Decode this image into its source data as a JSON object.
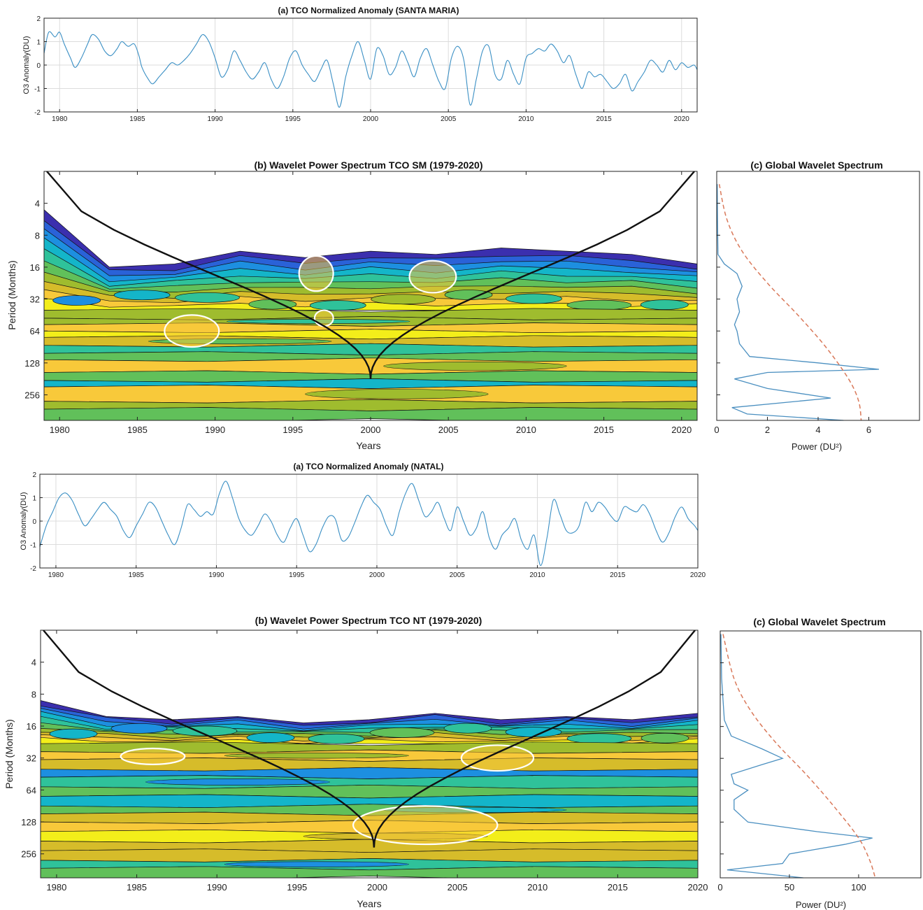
{
  "colors": {
    "anomaly_line": "#3a8fc4",
    "gws_line": "#4a8fc0",
    "significance_dashed": "#d9795a",
    "cone": "#111111",
    "significance_contour": "#ffffff",
    "wavelet_levels": [
      "#ffffff",
      "#3b2fae",
      "#2a62d8",
      "#1d8fe0",
      "#14b5c9",
      "#2fc29a",
      "#61c05a",
      "#9fbc2e",
      "#d6bc2a",
      "#f8c93a",
      "#f3ee1a"
    ]
  },
  "panels": {
    "sm_anomaly": {
      "title": "(a) TCO Normalized Anomaly (SANTA MARIA)",
      "ylabel": "O3 Anomaly(DU)"
    },
    "sm_wavelet": {
      "title": "(b) Wavelet Power Spectrum TCO SM  (1979-2020)",
      "xlabel": "Years",
      "ylabel": "Period (Months)"
    },
    "sm_gws": {
      "title": "(c) Global Wavelet Spectrum",
      "xlabel": "Power (DU²)"
    },
    "nt_anomaly": {
      "title": "(a) TCO Normalized Anomaly (NATAL)",
      "ylabel": "O3 Anomaly(DU)"
    },
    "nt_wavelet": {
      "title": "(b) Wavelet Power Spectrum TCO NT (1979-2020)",
      "xlabel": "Years",
      "ylabel": "Period (Months)"
    },
    "nt_gws": {
      "title": "(c) Global Wavelet Spectrum",
      "xlabel": "Power (DU²)"
    }
  },
  "chart_data": [
    {
      "id": "sm_anomaly",
      "type": "line",
      "title": "(a) TCO Normalized Anomaly (SANTA MARIA)",
      "ylabel": "O3 Anomaly(DU)",
      "xlim": [
        1979,
        2021
      ],
      "ylim": [
        -2,
        2
      ],
      "xticks": [
        1980,
        1985,
        1990,
        1995,
        2000,
        2005,
        2010,
        2015,
        2020
      ],
      "yticks": [
        -2,
        -1,
        0,
        1,
        2
      ],
      "grid": true,
      "series": [
        {
          "x": [
            1979.0,
            1979.3,
            1979.7,
            1980.0,
            1980.3,
            1980.7,
            1981.0,
            1981.4,
            1981.8,
            1982.1,
            1982.5,
            1982.9,
            1983.3,
            1983.7,
            1984.0,
            1984.4,
            1984.8,
            1985.1,
            1985.3,
            1985.7,
            1986.0,
            1986.4,
            1986.8,
            1987.2,
            1987.6,
            1988.0,
            1988.4,
            1988.8,
            1989.2,
            1989.6,
            1990.0,
            1990.4,
            1990.8,
            1991.2,
            1991.6,
            1992.0,
            1992.4,
            1992.8,
            1993.2,
            1993.6,
            1994.0,
            1994.4,
            1994.8,
            1995.2,
            1995.6,
            1996.0,
            1996.4,
            1996.8,
            1997.2,
            1997.6,
            1998.0,
            1998.4,
            1998.8,
            1999.2,
            1999.6,
            2000.0,
            2000.4,
            2000.8,
            2001.2,
            2001.6,
            2002.0,
            2002.4,
            2002.8,
            2003.2,
            2003.6,
            2004.0,
            2004.4,
            2004.8,
            2005.2,
            2005.6,
            2006.0,
            2006.4,
            2006.8,
            2007.2,
            2007.6,
            2008.0,
            2008.4,
            2008.8,
            2009.2,
            2009.6,
            2010.0,
            2010.4,
            2010.8,
            2011.2,
            2011.6,
            2012.0,
            2012.4,
            2012.8,
            2013.2,
            2013.6,
            2014.0,
            2014.4,
            2014.8,
            2015.2,
            2015.6,
            2016.0,
            2016.4,
            2016.8,
            2017.2,
            2017.6,
            2018.0,
            2018.4,
            2018.8,
            2019.2,
            2019.6,
            2020.0,
            2020.4,
            2020.8,
            2021.0
          ],
          "y": [
            0.5,
            1.4,
            1.2,
            1.4,
            0.9,
            0.3,
            -0.1,
            0.3,
            0.9,
            1.3,
            1.1,
            0.6,
            0.4,
            0.7,
            1.0,
            0.8,
            0.9,
            0.4,
            -0.1,
            -0.6,
            -0.8,
            -0.5,
            -0.2,
            0.1,
            0.0,
            0.2,
            0.5,
            0.9,
            1.3,
            1.0,
            0.3,
            -0.5,
            -0.2,
            0.6,
            0.2,
            -0.3,
            -0.6,
            -0.3,
            0.1,
            -0.6,
            -1.0,
            -0.5,
            0.3,
            0.6,
            0.0,
            -0.4,
            -0.7,
            -0.2,
            0.2,
            -0.8,
            -1.8,
            -0.5,
            0.4,
            1.0,
            0.2,
            -0.6,
            0.7,
            0.4,
            -0.4,
            -0.1,
            0.6,
            0.1,
            -0.5,
            0.3,
            0.7,
            0.0,
            -0.7,
            -1.0,
            0.3,
            0.8,
            0.2,
            -1.7,
            -0.6,
            0.6,
            0.8,
            -0.4,
            -0.6,
            0.2,
            -0.4,
            -0.8,
            0.3,
            0.5,
            0.7,
            0.6,
            0.9,
            0.6,
            0.1,
            0.4,
            -0.4,
            -1.0,
            -0.3,
            -0.5,
            -0.4,
            -0.7,
            -1.0,
            -0.8,
            -0.4,
            -1.1,
            -0.7,
            -0.3,
            0.2,
            0.0,
            -0.3,
            0.2,
            -0.2,
            0.1,
            -0.1,
            0.0,
            -0.2
          ]
        }
      ]
    },
    {
      "id": "sm_wavelet",
      "type": "heatmap",
      "title": "(b) Wavelet Power Spectrum TCO SM  (1979-2020)",
      "xlabel": "Years",
      "ylabel": "Period (Months)",
      "xlim": [
        1979,
        2021
      ],
      "xticks": [
        1980,
        1985,
        1990,
        1995,
        2000,
        2005,
        2010,
        2015,
        2020
      ],
      "yticks": [
        4,
        8,
        16,
        32,
        64,
        128,
        256
      ],
      "ylim_log2": [
        1,
        8.8
      ],
      "band_log2": [
        [
          5.35,
          5.6,
          7
        ],
        [
          5.6,
          5.8,
          7
        ],
        [
          5.8,
          6.0,
          9
        ],
        [
          6.0,
          6.2,
          10
        ],
        [
          6.2,
          6.45,
          8
        ],
        [
          6.45,
          6.7,
          5
        ],
        [
          6.7,
          6.9,
          6
        ],
        [
          6.9,
          7.3,
          9
        ],
        [
          7.3,
          7.55,
          6
        ],
        [
          7.55,
          7.75,
          4
        ],
        [
          7.75,
          8.2,
          9
        ],
        [
          8.2,
          8.45,
          7
        ],
        [
          8.45,
          8.8,
          6
        ]
      ],
      "mid_levels": [
        3,
        4,
        5,
        6,
        5,
        7,
        6,
        5,
        6,
        5
      ],
      "top_edge": [
        2.2,
        4.0,
        3.9,
        3.5,
        3.7,
        3.5,
        3.6,
        3.4,
        3.5,
        3.6,
        3.9
      ],
      "significant_regions": [
        [
          1996.5,
          4.2,
          2.2,
          0.55
        ],
        [
          2004.0,
          4.3,
          3.0,
          0.5
        ],
        [
          1988.5,
          6.0,
          3.5,
          0.5
        ],
        [
          1997.0,
          5.6,
          1.2,
          0.25
        ]
      ],
      "coi_peak_year": 2000,
      "coi_peak_log2": 7.5
    },
    {
      "id": "sm_gws",
      "type": "line",
      "title": "(c) Global Wavelet Spectrum",
      "xlabel": "Power (DU²)",
      "xlim": [
        0,
        8
      ],
      "xticks": [
        0,
        2,
        4,
        6
      ],
      "series": [
        {
          "style": "solid",
          "log2_period": [
            1.4,
            2.5,
            3.6,
            3.9,
            4.2,
            4.6,
            5.0,
            5.4,
            5.8,
            6.0,
            6.4,
            6.8,
            7.0,
            7.2,
            7.3,
            7.5,
            7.8,
            8.1,
            8.4,
            8.6,
            8.8
          ],
          "power": [
            0.02,
            0.03,
            0.05,
            0.3,
            0.8,
            1.0,
            0.8,
            0.9,
            0.7,
            0.8,
            0.9,
            1.3,
            4.0,
            6.4,
            2.0,
            0.7,
            2.0,
            4.5,
            0.6,
            1.2,
            5.0
          ]
        },
        {
          "style": "dashed",
          "log2_period": [
            1.4,
            2.5,
            3.5,
            4.5,
            5.5,
            6.5,
            7.5,
            8.2,
            8.8
          ],
          "power": [
            0.1,
            0.4,
            1.0,
            2.0,
            3.2,
            4.3,
            5.2,
            5.6,
            5.7
          ]
        }
      ]
    },
    {
      "id": "nt_anomaly",
      "type": "line",
      "title": "(a) TCO Normalized Anomaly (NATAL)",
      "ylabel": "O3 Anomaly(DU)",
      "xlim": [
        1979,
        2020
      ],
      "ylim": [
        -2,
        2
      ],
      "xticks": [
        1980,
        1985,
        1990,
        1995,
        2000,
        2005,
        2010,
        2015,
        2020
      ],
      "yticks": [
        -2,
        -1,
        0,
        1,
        2
      ],
      "grid": true,
      "series": [
        {
          "x": [
            1979.0,
            1979.4,
            1979.8,
            1980.2,
            1980.6,
            1981.0,
            1981.4,
            1981.8,
            1982.2,
            1982.6,
            1983.0,
            1983.4,
            1983.8,
            1984.2,
            1984.6,
            1985.0,
            1985.4,
            1985.8,
            1986.2,
            1986.6,
            1987.0,
            1987.4,
            1987.8,
            1988.2,
            1988.6,
            1989.0,
            1989.4,
            1989.8,
            1990.2,
            1990.6,
            1991.0,
            1991.4,
            1991.8,
            1992.2,
            1992.6,
            1993.0,
            1993.4,
            1993.8,
            1994.2,
            1994.6,
            1995.0,
            1995.4,
            1995.8,
            1996.2,
            1996.6,
            1997.0,
            1997.4,
            1997.8,
            1998.2,
            1998.6,
            1999.0,
            1999.4,
            1999.8,
            2000.2,
            2000.6,
            2001.0,
            2001.4,
            2001.8,
            2002.2,
            2002.6,
            2003.0,
            2003.4,
            2003.8,
            2004.2,
            2004.6,
            2005.0,
            2005.4,
            2005.8,
            2006.2,
            2006.6,
            2007.0,
            2007.4,
            2007.8,
            2008.2,
            2008.6,
            2009.0,
            2009.4,
            2009.8,
            2010.2,
            2010.6,
            2011.0,
            2011.4,
            2011.8,
            2012.2,
            2012.6,
            2013.0,
            2013.4,
            2013.8,
            2014.2,
            2014.6,
            2015.0,
            2015.4,
            2015.8,
            2016.2,
            2016.6,
            2017.0,
            2017.4,
            2017.8,
            2018.2,
            2018.6,
            2019.0,
            2019.4,
            2019.8,
            2020.0
          ],
          "y": [
            -1.1,
            -0.2,
            0.4,
            1.0,
            1.2,
            0.9,
            0.3,
            -0.2,
            0.1,
            0.5,
            0.8,
            0.5,
            0.2,
            -0.4,
            -0.7,
            -0.2,
            0.3,
            0.8,
            0.6,
            0.0,
            -0.6,
            -1.0,
            -0.3,
            0.7,
            0.5,
            0.2,
            0.4,
            0.3,
            1.2,
            1.7,
            1.0,
            0.1,
            -0.4,
            -0.6,
            -0.2,
            0.3,
            0.0,
            -0.6,
            -0.9,
            -0.3,
            0.1,
            -0.6,
            -1.3,
            -1.0,
            -0.3,
            0.2,
            0.1,
            -0.8,
            -0.7,
            -0.1,
            0.6,
            1.1,
            0.8,
            0.5,
            -0.2,
            -0.6,
            0.4,
            1.2,
            1.6,
            0.9,
            0.2,
            0.4,
            0.8,
            0.1,
            -0.4,
            0.6,
            0.0,
            -0.6,
            -0.3,
            0.4,
            -0.7,
            -1.2,
            -0.6,
            -0.3,
            0.1,
            -0.8,
            -1.2,
            -0.6,
            -1.9,
            -0.7,
            0.9,
            0.3,
            -0.4,
            -0.5,
            -0.2,
            0.8,
            0.4,
            0.8,
            0.6,
            0.2,
            0.0,
            0.6,
            0.5,
            0.4,
            0.7,
            0.3,
            -0.4,
            -0.9,
            -0.5,
            0.2,
            0.6,
            0.1,
            -0.2,
            -0.4
          ]
        }
      ]
    },
    {
      "id": "nt_wavelet",
      "type": "heatmap",
      "title": "(b) Wavelet Power Spectrum TCO NT (1979-2020)",
      "xlabel": "Years",
      "ylabel": "Period (Months)",
      "xlim": [
        1979,
        2020
      ],
      "xticks": [
        1980,
        1985,
        1990,
        1995,
        2000,
        2005,
        2010,
        2015,
        2020
      ],
      "yticks": [
        4,
        8,
        16,
        32,
        64,
        128,
        256
      ],
      "ylim_log2": [
        1,
        8.75
      ],
      "band_log2": [
        [
          4.55,
          4.8,
          7
        ],
        [
          4.8,
          5.05,
          9
        ],
        [
          5.05,
          5.35,
          8
        ],
        [
          5.35,
          5.6,
          3
        ],
        [
          5.6,
          5.9,
          5
        ],
        [
          5.9,
          6.2,
          6
        ],
        [
          6.2,
          6.5,
          4
        ],
        [
          6.5,
          6.75,
          6
        ],
        [
          6.75,
          7.0,
          8
        ],
        [
          7.0,
          7.3,
          9
        ],
        [
          7.3,
          7.6,
          10
        ],
        [
          7.6,
          7.9,
          8
        ],
        [
          7.9,
          8.2,
          8
        ],
        [
          8.2,
          8.45,
          5
        ],
        [
          8.45,
          8.75,
          6
        ]
      ],
      "mid_levels": [
        4,
        3,
        5,
        4,
        5,
        6,
        5,
        4,
        5,
        6
      ],
      "top_edge": [
        3.2,
        3.7,
        3.8,
        3.7,
        3.9,
        3.8,
        3.6,
        3.8,
        3.7,
        3.8,
        3.6
      ],
      "significant_regions": [
        [
          2007.5,
          5.0,
          4.5,
          0.4
        ],
        [
          1986.0,
          4.95,
          4.0,
          0.25
        ],
        [
          2003.0,
          7.1,
          9.0,
          0.6
        ]
      ],
      "coi_peak_year": 1999.8,
      "coi_peak_log2": 7.8
    },
    {
      "id": "nt_gws",
      "type": "line",
      "title": "(c) Global Wavelet Spectrum",
      "xlabel": "Power (DU²)",
      "xlim": [
        0,
        145
      ],
      "xticks": [
        0,
        50,
        100
      ],
      "series": [
        {
          "style": "solid",
          "log2_period": [
            1.1,
            2.5,
            3.8,
            4.3,
            4.7,
            5.0,
            5.2,
            5.5,
            5.8,
            6.0,
            6.3,
            6.6,
            7.0,
            7.3,
            7.5,
            7.7,
            8.0,
            8.3,
            8.5,
            8.75
          ],
          "power": [
            0.5,
            1,
            3,
            8,
            30,
            45,
            30,
            8,
            10,
            20,
            10,
            10,
            20,
            70,
            110,
            90,
            50,
            45,
            5,
            60
          ]
        },
        {
          "style": "dashed",
          "log2_period": [
            1.1,
            2.5,
            3.5,
            4.5,
            5.5,
            6.5,
            7.5,
            8.2,
            8.75
          ],
          "power": [
            2,
            10,
            22,
            40,
            62,
            82,
            100,
            108,
            112
          ]
        }
      ]
    }
  ]
}
